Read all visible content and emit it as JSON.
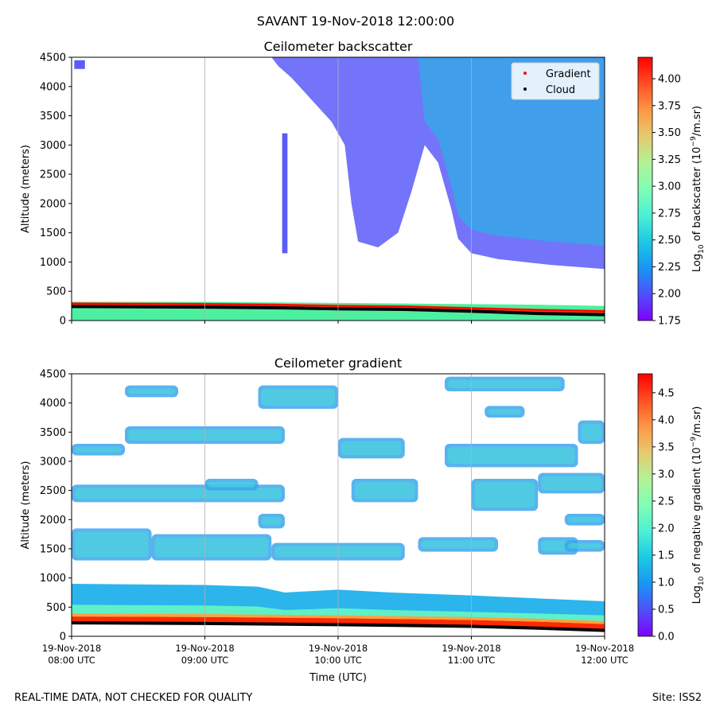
{
  "figure": {
    "suptitle": "SAVANT 19-Nov-2018 12:00:00",
    "footer_left": "REAL-TIME DATA, NOT CHECKED FOR QUALITY",
    "footer_right": "Site: ISS2"
  },
  "colors": {
    "rainbow": [
      "#8000ff",
      "#4f4ffb",
      "#1996f3",
      "#1cc9e4",
      "#4df0d5",
      "#80feb3",
      "#b3f297",
      "#e6ca6d",
      "#ff9644",
      "#ff4f23",
      "#ff0000"
    ],
    "gradient_marker": "#ff0000",
    "cloud_marker": "#000000",
    "grid": "#b0b0b0"
  },
  "chart_data": [
    {
      "type": "heatmap",
      "title": "Ceilometer backscatter",
      "xlabel": "",
      "ylabel": "Altitude (meters)",
      "x_ticks": [
        "19-Nov-2018\n08:00 UTC",
        "19-Nov-2018\n09:00 UTC",
        "19-Nov-2018\n10:00 UTC",
        "19-Nov-2018\n11:00 UTC",
        "19-Nov-2018\n12:00 UTC"
      ],
      "x_hours": [
        8,
        9,
        10,
        11,
        12
      ],
      "xlim": [
        8,
        12
      ],
      "ylim": [
        0,
        4500
      ],
      "yticks": [
        0,
        500,
        1000,
        1500,
        2000,
        2500,
        3000,
        3500,
        4000,
        4500
      ],
      "grid": "vertical",
      "colorbar": {
        "label_prefix": "Log",
        "label_sub": "10",
        "label_mid": " of backscatter (10",
        "label_sup": "−9",
        "label_suffix": "/m.sr)",
        "range": [
          1.75,
          4.2
        ],
        "ticks": [
          "1.75",
          "2.00",
          "2.25",
          "2.50",
          "2.75",
          "3.00",
          "3.25",
          "3.50",
          "3.75",
          "4.00"
        ]
      },
      "legend": {
        "placement": "upper right",
        "entries": [
          {
            "label": "Gradient",
            "color": "#ff0000"
          },
          {
            "label": "Cloud",
            "color": "#000000"
          }
        ]
      },
      "layers": {
        "surface_layer_top_m": [
          320,
          320,
          310,
          300,
          280,
          270,
          250
        ],
        "surface_layer_hours": [
          8,
          9,
          9.5,
          10,
          11,
          11.5,
          12
        ],
        "cloud_marker_m": [
          {
            "h": 8,
            "v": 240
          },
          {
            "h": 9,
            "v": 230
          },
          {
            "h": 9.5,
            "v": 220
          },
          {
            "h": 10,
            "v": 200
          },
          {
            "h": 10.5,
            "v": 190
          },
          {
            "h": 11,
            "v": 160
          },
          {
            "h": 11.5,
            "v": 120
          },
          {
            "h": 12,
            "v": 100
          }
        ],
        "gradient_marker_m": [
          {
            "h": 8,
            "v": 290
          },
          {
            "h": 9,
            "v": 280
          },
          {
            "h": 9.5,
            "v": 270
          },
          {
            "h": 10,
            "v": 250
          },
          {
            "h": 10.5,
            "v": 240
          },
          {
            "h": 11,
            "v": 210
          },
          {
            "h": 11.5,
            "v": 180
          },
          {
            "h": 12,
            "v": 160
          }
        ],
        "upper_cloud_base_m": [
          {
            "h": 9.55,
            "v": 4350
          },
          {
            "h": 9.65,
            "v": 4150
          },
          {
            "h": 9.75,
            "v": 3900
          },
          {
            "h": 9.85,
            "v": 3650
          },
          {
            "h": 9.95,
            "v": 3400
          },
          {
            "h": 10.05,
            "v": 3000
          },
          {
            "h": 10.1,
            "v": 2000
          },
          {
            "h": 10.15,
            "v": 1350
          },
          {
            "h": 10.3,
            "v": 1250
          },
          {
            "h": 10.45,
            "v": 1500
          },
          {
            "h": 10.55,
            "v": 2200
          },
          {
            "h": 10.65,
            "v": 3000
          },
          {
            "h": 10.75,
            "v": 2700
          },
          {
            "h": 10.85,
            "v": 1900
          },
          {
            "h": 10.9,
            "v": 1400
          },
          {
            "h": 11,
            "v": 1150
          },
          {
            "h": 11.2,
            "v": 1050
          },
          {
            "h": 11.4,
            "v": 1000
          },
          {
            "h": 11.6,
            "v": 950
          },
          {
            "h": 12,
            "v": 880
          }
        ],
        "isolated_column": {
          "h_start": 9.58,
          "h_end": 9.62,
          "v_start": 1150,
          "v_end": 3200
        }
      }
    },
    {
      "type": "heatmap",
      "title": "Ceilometer gradient",
      "xlabel": "Time (UTC)",
      "ylabel": "Altitude (meters)",
      "x_ticks": [
        "19-Nov-2018\n08:00 UTC",
        "19-Nov-2018\n09:00 UTC",
        "19-Nov-2018\n10:00 UTC",
        "19-Nov-2018\n11:00 UTC",
        "19-Nov-2018\n12:00 UTC"
      ],
      "x_hours": [
        8,
        9,
        10,
        11,
        12
      ],
      "xlim": [
        8,
        12
      ],
      "ylim": [
        0,
        4500
      ],
      "yticks": [
        0,
        500,
        1000,
        1500,
        2000,
        2500,
        3000,
        3500,
        4000,
        4500
      ],
      "grid": "vertical",
      "colorbar": {
        "label_prefix": "Log",
        "label_sub": "10",
        "label_mid": " of negative gradient (10",
        "label_sup": "−9",
        "label_suffix": "/m.sr)",
        "range": [
          0.0,
          4.85
        ],
        "ticks": [
          "0.0",
          "0.5",
          "1.0",
          "1.5",
          "2.0",
          "2.5",
          "3.0",
          "3.5",
          "4.0",
          "4.5"
        ]
      },
      "layers": {
        "boundary_layer_top_m": [
          {
            "h": 8,
            "v": 900
          },
          {
            "h": 9,
            "v": 880
          },
          {
            "h": 9.4,
            "v": 850
          },
          {
            "h": 9.6,
            "v": 750
          },
          {
            "h": 10,
            "v": 800
          },
          {
            "h": 10.4,
            "v": 750
          },
          {
            "h": 11,
            "v": 700
          },
          {
            "h": 11.5,
            "v": 650
          },
          {
            "h": 12,
            "v": 600
          }
        ],
        "cloud_marker_m": [
          {
            "h": 8,
            "v": 230
          },
          {
            "h": 9,
            "v": 220
          },
          {
            "h": 10,
            "v": 200
          },
          {
            "h": 11,
            "v": 170
          },
          {
            "h": 11.5,
            "v": 140
          },
          {
            "h": 12,
            "v": 100
          }
        ],
        "cloud_patches": [
          {
            "h0": 8.0,
            "h1": 8.6,
            "v0": 1300,
            "v1": 1850
          },
          {
            "h0": 8.6,
            "h1": 9.5,
            "v0": 1300,
            "v1": 1750
          },
          {
            "h0": 9.5,
            "h1": 10.5,
            "v0": 1300,
            "v1": 1600
          },
          {
            "h0": 10.6,
            "h1": 11.2,
            "v0": 1450,
            "v1": 1700
          },
          {
            "h0": 11.5,
            "h1": 11.8,
            "v0": 1400,
            "v1": 1700
          },
          {
            "h0": 11.7,
            "h1": 12,
            "v0": 1450,
            "v1": 1650
          },
          {
            "h0": 8.0,
            "h1": 9.6,
            "v0": 2300,
            "v1": 2600
          },
          {
            "h0": 10.1,
            "h1": 10.6,
            "v0": 2300,
            "v1": 2700
          },
          {
            "h0": 11.0,
            "h1": 11.5,
            "v0": 2150,
            "v1": 2700
          },
          {
            "h0": 11.5,
            "h1": 12,
            "v0": 2450,
            "v1": 2800
          },
          {
            "h0": 8.0,
            "h1": 8.4,
            "v0": 3100,
            "v1": 3300
          },
          {
            "h0": 8.4,
            "h1": 9.6,
            "v0": 3300,
            "v1": 3600
          },
          {
            "h0": 10.0,
            "h1": 10.5,
            "v0": 3050,
            "v1": 3400
          },
          {
            "h0": 10.8,
            "h1": 11.8,
            "v0": 2900,
            "v1": 3300
          },
          {
            "h0": 11.8,
            "h1": 12,
            "v0": 3300,
            "v1": 3700
          },
          {
            "h0": 8.4,
            "h1": 8.8,
            "v0": 4100,
            "v1": 4300
          },
          {
            "h0": 9.4,
            "h1": 10.0,
            "v0": 3900,
            "v1": 4300
          },
          {
            "h0": 10.8,
            "h1": 11.7,
            "v0": 4200,
            "v1": 4450
          },
          {
            "h0": 11.1,
            "h1": 11.4,
            "v0": 3750,
            "v1": 3950
          },
          {
            "h0": 9.0,
            "h1": 9.4,
            "v0": 2500,
            "v1": 2700
          },
          {
            "h0": 9.4,
            "h1": 9.6,
            "v0": 1850,
            "v1": 2100
          },
          {
            "h0": 11.7,
            "h1": 12,
            "v0": 1900,
            "v1": 2100
          }
        ]
      }
    }
  ]
}
